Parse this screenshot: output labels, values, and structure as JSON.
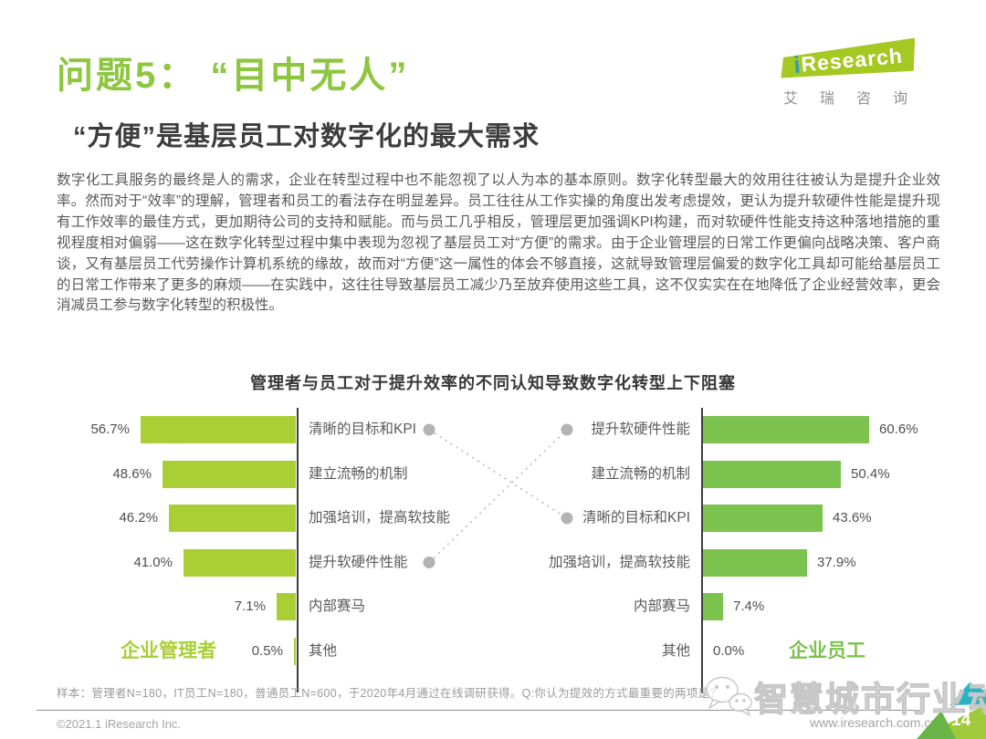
{
  "header": {
    "title": "问题5： “目中无人”",
    "subtitle": "“方便”是基层员工对数字化的最大需求"
  },
  "logo": {
    "i": "i",
    "rest": "Research",
    "chinese": "艾瑞咨询"
  },
  "body": {
    "paragraph": "数字化工具服务的最终是人的需求，企业在转型过程中也不能忽视了以人为本的基本原则。数字化转型最大的效用往往被认为是提升企业效率。然而对于“效率”的理解，管理者和员工的看法存在明显差异。员工往往从工作实操的角度出发考虑提效，更认为提升软硬件性能是提升现有工作效率的最佳方式，更加期待公司的支持和赋能。而与员工几乎相反，管理层更加强调KPI构建，而对软硬件性能支持这种落地措施的重视程度相对偏弱——这在数字化转型过程中集中表现为忽视了基层员工对“方便”的需求。由于企业管理层的日常工作更偏向战略决策、客户商谈，又有基层员工代劳操作计算机系统的缘故，故而对“方便”这一属性的体会不够直接，这就导致管理层偏爱的数字化工具却可能给基层员工的日常工作带来了更多的麻烦——在实践中，这往往导致基层员工减少乃至放弃使用这些工具，这不仅实实在在地降低了企业经营效率，更会消减员工参与数字化转型的积极性。"
  },
  "chart_data": {
    "type": "bar",
    "title": "管理者与员工对于提升效率的不同认知导致数字化转型上下阻塞",
    "orientation": "tornado-horizontal",
    "unit": "%",
    "series": [
      {
        "name": "企业管理者",
        "side": "left",
        "color": "#a9cf35",
        "items": [
          {
            "label": "清晰的目标和KPI",
            "value": 56.7
          },
          {
            "label": "建立流畅的机制",
            "value": 48.6
          },
          {
            "label": "加强培训，提高软技能",
            "value": 46.2
          },
          {
            "label": "提升软硬件性能",
            "value": 41.0
          },
          {
            "label": "内部赛马",
            "value": 7.1
          },
          {
            "label": "其他",
            "value": 0.5
          }
        ]
      },
      {
        "name": "企业员工",
        "side": "right",
        "color": "#7cc24e",
        "items": [
          {
            "label": "提升软硬件性能",
            "value": 60.6
          },
          {
            "label": "建立流畅的机制",
            "value": 50.4
          },
          {
            "label": "清晰的目标和KPI",
            "value": 43.6
          },
          {
            "label": "加强培训，提高软技能",
            "value": 37.9
          },
          {
            "label": "内部赛马",
            "value": 7.4
          },
          {
            "label": "其他",
            "value": 0.0
          }
        ]
      }
    ],
    "connectors": [
      {
        "label": "清晰的目标和KPI",
        "left_row": 0,
        "right_row": 2
      },
      {
        "label": "提升软硬件性能",
        "left_row": 3,
        "right_row": 0
      }
    ]
  },
  "footnote": "样本：管理者N=180，IT员工N=180，普通员工N=600，于2020年4月通过在线调研获得。Q:你认为提效的方式最重要的两项是？",
  "footer": {
    "copyright": "©2021.1 iResearch Inc.",
    "site": "www.iresearch.com.cn",
    "page_number": "14"
  },
  "watermark": {
    "text": "智慧城市行业动态",
    "icon": "wechat-icon"
  },
  "colors": {
    "title_green": "#8dc63f",
    "left_bar": "#a9cf35",
    "right_bar": "#7cc24e",
    "ribbon_lime": "#9fca3b",
    "ribbon_teal": "#27b5c4",
    "ribbon_dark_green": "#68b447"
  }
}
